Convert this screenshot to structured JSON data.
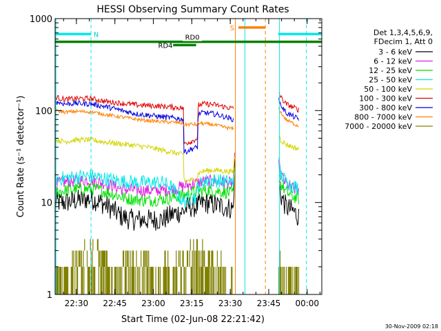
{
  "chart_data": {
    "type": "line",
    "title": "HESSI Observing Summary Count Rates",
    "xlabel": "Start Time (02-Jun-08 22:21:42)",
    "ylabel": "Count Rate (s⁻¹ detector⁻¹)",
    "x_unit": "minutes after 22:21:42 UT",
    "xlim": [
      0,
      104
    ],
    "ylim": [
      1,
      1000
    ],
    "y_scale": "log",
    "x_ticks": [
      {
        "x": 8.3,
        "label": "22:30"
      },
      {
        "x": 23.3,
        "label": "22:45"
      },
      {
        "x": 38.3,
        "label": "23:00"
      },
      {
        "x": 53.3,
        "label": "23:15"
      },
      {
        "x": 68.3,
        "label": "23:30"
      },
      {
        "x": 83.3,
        "label": "23:45"
      },
      {
        "x": 98.3,
        "label": "00:00"
      }
    ],
    "y_ticks": [
      {
        "y": 1,
        "label": "1"
      },
      {
        "y": 10,
        "label": "10"
      },
      {
        "y": 100,
        "label": "100"
      },
      {
        "y": 1000,
        "label": "1000"
      }
    ],
    "legend": {
      "placement": "right",
      "header": [
        "Det 1,3,4,5,6,9,",
        "FDecim 1, Att 0"
      ]
    },
    "series": [
      {
        "name": "3 - 6 keV",
        "color": "#000000",
        "noise": 0.12,
        "points": [
          [
            0,
            10
          ],
          [
            4,
            10
          ],
          [
            8,
            10.5
          ],
          [
            14,
            11
          ],
          [
            18,
            10
          ],
          [
            22,
            8.5
          ],
          [
            26,
            7
          ],
          [
            30,
            6.5
          ],
          [
            36,
            6.5
          ],
          [
            42,
            6.5
          ],
          [
            46,
            7.5
          ],
          [
            50,
            8
          ],
          [
            52,
            9
          ],
          [
            55,
            9
          ],
          [
            58,
            10
          ],
          [
            62,
            9.5
          ],
          [
            66,
            9
          ],
          [
            69.5,
            8.5
          ],
          [
            70,
            25
          ],
          [
            70.3,
            null
          ],
          [
            87,
            null
          ],
          [
            87,
            20
          ],
          [
            88,
            12
          ],
          [
            90,
            9
          ],
          [
            93,
            8
          ],
          [
            95,
            7
          ]
        ]
      },
      {
        "name": "6 - 12 keV",
        "color": "#e020e0",
        "noise": 0.07,
        "points": [
          [
            0,
            16
          ],
          [
            6,
            17
          ],
          [
            14,
            17.5
          ],
          [
            20,
            16
          ],
          [
            26,
            14
          ],
          [
            34,
            13.5
          ],
          [
            42,
            13.5
          ],
          [
            46,
            14
          ],
          [
            50,
            15
          ],
          [
            54,
            16
          ],
          [
            58,
            17
          ],
          [
            62,
            17
          ],
          [
            66,
            16.5
          ],
          [
            69.5,
            16
          ],
          [
            70,
            30
          ],
          [
            70.3,
            null
          ],
          [
            87,
            null
          ],
          [
            87,
            28
          ],
          [
            88,
            20
          ],
          [
            90,
            16
          ],
          [
            93,
            14
          ],
          [
            95,
            13.5
          ]
        ]
      },
      {
        "name": "12 - 25 keV",
        "color": "#00e000",
        "noise": 0.07,
        "points": [
          [
            0,
            13
          ],
          [
            8,
            14
          ],
          [
            16,
            14
          ],
          [
            22,
            12.5
          ],
          [
            28,
            11
          ],
          [
            36,
            10.5
          ],
          [
            44,
            11
          ],
          [
            50,
            12
          ],
          [
            54,
            13
          ],
          [
            58,
            13.5
          ],
          [
            62,
            13.5
          ],
          [
            66,
            13
          ],
          [
            69.5,
            12.5
          ],
          [
            70,
            22
          ],
          [
            70.3,
            null
          ],
          [
            87,
            null
          ],
          [
            87,
            25
          ],
          [
            88,
            16
          ],
          [
            90,
            13
          ],
          [
            93,
            11.5
          ],
          [
            95,
            11
          ]
        ]
      },
      {
        "name": "25 - 50 keV",
        "color": "#00e8e8",
        "noise": 0.08,
        "points": [
          [
            0,
            18
          ],
          [
            8,
            19
          ],
          [
            14,
            19.5
          ],
          [
            20,
            18
          ],
          [
            26,
            17
          ],
          [
            34,
            16.5
          ],
          [
            42,
            16.5
          ],
          [
            45,
            15
          ],
          [
            48,
            12
          ],
          [
            50,
            10
          ],
          [
            51,
            10.5
          ],
          [
            52,
            11
          ],
          [
            55,
            11.5
          ],
          [
            55.5,
            15
          ],
          [
            58,
            17
          ],
          [
            62,
            17.5
          ],
          [
            66,
            17
          ],
          [
            69.5,
            16.5
          ],
          [
            70,
            26
          ],
          [
            70.3,
            null
          ],
          [
            87,
            null
          ],
          [
            87,
            30
          ],
          [
            88,
            20
          ],
          [
            90,
            17
          ],
          [
            93,
            15
          ],
          [
            95,
            14.5
          ]
        ]
      },
      {
        "name": "50 - 100 keV",
        "color": "#d4d400",
        "noise": 0.03,
        "points": [
          [
            0,
            48
          ],
          [
            4,
            46
          ],
          [
            8,
            48
          ],
          [
            14,
            48
          ],
          [
            18,
            46
          ],
          [
            24,
            44
          ],
          [
            30,
            42
          ],
          [
            36,
            40
          ],
          [
            40,
            38
          ],
          [
            44,
            36
          ],
          [
            48,
            34
          ],
          [
            50,
            33
          ],
          [
            50.3,
            17
          ],
          [
            53,
            17.5
          ],
          [
            55.5,
            18
          ],
          [
            55.8,
            21
          ],
          [
            58,
            22
          ],
          [
            62,
            22.5
          ],
          [
            66,
            22
          ],
          [
            69.5,
            21.5
          ],
          [
            70,
            32
          ],
          [
            70.3,
            null
          ],
          [
            87,
            null
          ],
          [
            87,
            55
          ],
          [
            88,
            48
          ],
          [
            90,
            43
          ],
          [
            93,
            40
          ],
          [
            95,
            38
          ]
        ]
      },
      {
        "name": "100 - 300 keV",
        "color": "#e00000",
        "noise": 0.03,
        "points": [
          [
            0,
            140
          ],
          [
            4,
            132
          ],
          [
            8,
            135
          ],
          [
            14,
            135
          ],
          [
            20,
            125
          ],
          [
            26,
            120
          ],
          [
            32,
            115
          ],
          [
            38,
            113
          ],
          [
            44,
            110
          ],
          [
            48,
            108
          ],
          [
            50,
            106
          ],
          [
            50.2,
            44
          ],
          [
            53,
            46
          ],
          [
            55.5,
            50
          ],
          [
            55.8,
            115
          ],
          [
            58,
            118
          ],
          [
            62,
            116
          ],
          [
            66,
            110
          ],
          [
            69.5,
            105
          ],
          [
            69.8,
            null
          ],
          [
            87,
            null
          ],
          [
            87,
            165
          ],
          [
            88,
            140
          ],
          [
            90,
            118
          ],
          [
            93,
            108
          ],
          [
            95,
            102
          ]
        ]
      },
      {
        "name": "300 - 800 keV",
        "color": "#0000e0",
        "noise": 0.03,
        "points": [
          [
            0,
            125
          ],
          [
            4,
            118
          ],
          [
            8,
            120
          ],
          [
            14,
            118
          ],
          [
            20,
            110
          ],
          [
            26,
            100
          ],
          [
            32,
            92
          ],
          [
            38,
            88
          ],
          [
            44,
            84
          ],
          [
            48,
            82
          ],
          [
            50,
            80
          ],
          [
            50.2,
            35
          ],
          [
            53,
            38
          ],
          [
            55.5,
            40
          ],
          [
            55.8,
            92
          ],
          [
            58,
            95
          ],
          [
            62,
            92
          ],
          [
            66,
            86
          ],
          [
            69.5,
            80
          ],
          [
            69.8,
            null
          ],
          [
            87,
            null
          ],
          [
            87,
            135
          ],
          [
            88,
            115
          ],
          [
            90,
            95
          ],
          [
            93,
            86
          ],
          [
            95,
            80
          ]
        ]
      },
      {
        "name": "800 - 7000 keV",
        "color": "#ff8000",
        "noise": 0.02,
        "points": [
          [
            0,
            100
          ],
          [
            4,
            96
          ],
          [
            8,
            98
          ],
          [
            14,
            97
          ],
          [
            20,
            90
          ],
          [
            26,
            85
          ],
          [
            32,
            80
          ],
          [
            38,
            77
          ],
          [
            44,
            75
          ],
          [
            48,
            74
          ],
          [
            50,
            72
          ],
          [
            50.2,
            70
          ],
          [
            53,
            71
          ],
          [
            55.5,
            70
          ],
          [
            55.8,
            73
          ],
          [
            58,
            72
          ],
          [
            62,
            70
          ],
          [
            66,
            66
          ],
          [
            69.5,
            63
          ],
          [
            69.8,
            null
          ],
          [
            87,
            null
          ],
          [
            87,
            110
          ],
          [
            88,
            95
          ],
          [
            90,
            80
          ],
          [
            93,
            72
          ],
          [
            95,
            68
          ]
        ]
      },
      {
        "name": "7000 - 20000 keV",
        "color": "#808000",
        "noise": 0,
        "band": true,
        "points": [
          [
            0,
            1
          ],
          [
            2,
            1.8
          ],
          [
            6,
            2
          ],
          [
            8,
            2.5
          ],
          [
            10,
            3
          ],
          [
            14,
            3.5
          ],
          [
            18,
            3
          ],
          [
            20,
            2.5
          ],
          [
            24,
            2
          ],
          [
            28,
            2.2
          ],
          [
            30,
            2.5
          ],
          [
            34,
            2.4
          ],
          [
            38,
            2
          ],
          [
            42,
            2
          ],
          [
            44,
            2.3
          ],
          [
            46,
            2.5
          ],
          [
            48,
            2.8
          ],
          [
            50,
            3
          ],
          [
            52,
            3.2
          ],
          [
            54,
            3.5
          ],
          [
            56,
            3.5
          ],
          [
            58,
            3.2
          ],
          [
            60,
            2.8
          ],
          [
            62,
            2.5
          ],
          [
            64,
            2.2
          ],
          [
            66,
            2
          ],
          [
            68,
            1.8
          ],
          [
            69.5,
            1.5
          ],
          [
            70,
            1
          ],
          [
            70.3,
            null
          ],
          [
            87,
            null
          ],
          [
            87,
            2.5
          ],
          [
            88,
            2
          ],
          [
            90,
            2
          ],
          [
            93,
            1.8
          ],
          [
            95,
            1.5
          ]
        ]
      }
    ],
    "annotations": {
      "bars": [
        {
          "label": "N",
          "color": "#00e8e8",
          "y": 680,
          "x_start": 0,
          "x_end": 14,
          "label_at": 16
        },
        {
          "label": "RD0",
          "color": "#008000",
          "y": 560,
          "x_start": 0,
          "x_end": 104,
          "label_at": 53.5,
          "label_above": true
        },
        {
          "label": "RD4",
          "color": "#008000",
          "y": 515,
          "x_start": 46,
          "x_end": 55,
          "label_at": 43
        },
        {
          "label": "S",
          "color": "#ff8000",
          "y": 800,
          "x_start": 71.5,
          "x_end": 82,
          "label_at": 69
        },
        {
          "label": "",
          "color": "#00e8e8",
          "y": 680,
          "x_start": 87,
          "x_end": 104
        }
      ],
      "vlines": [
        {
          "x": 0.3,
          "color": "#00e8e8",
          "dash": false
        },
        {
          "x": 14,
          "color": "#00e8e8",
          "dash": true
        },
        {
          "x": 70.3,
          "color": "#ff8000",
          "dash": false
        },
        {
          "x": 74,
          "color": "#00e8e8",
          "dash": false
        },
        {
          "x": 82,
          "color": "#ff8000",
          "dash": true
        },
        {
          "x": 87.5,
          "color": "#00e8e8",
          "dash": false
        },
        {
          "x": 98,
          "color": "#00e8e8",
          "dash": true
        }
      ]
    }
  },
  "footer": {
    "timestamp": "30-Nov-2009 02:18"
  }
}
